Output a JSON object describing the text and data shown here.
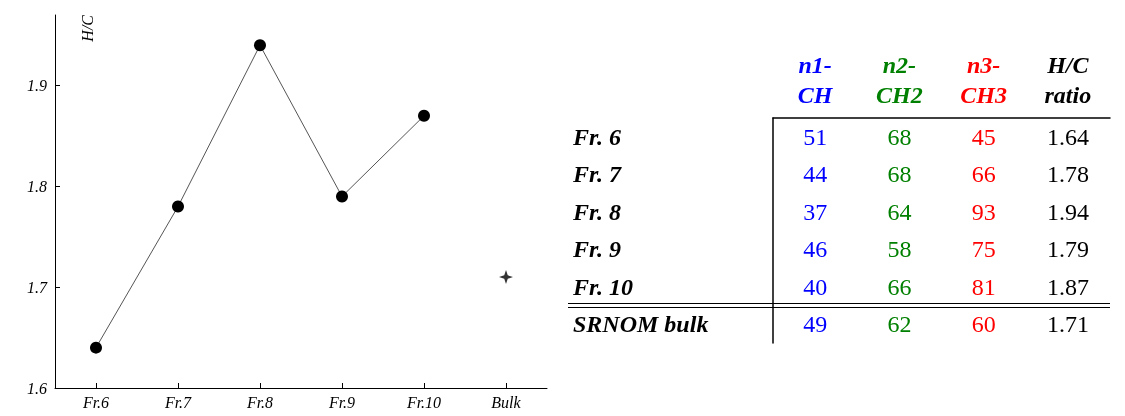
{
  "chart_data": [
    {
      "type": "line",
      "ylabel": "H/C",
      "categories": [
        "Fr.6",
        "Fr.7",
        "Fr.8",
        "Fr.9",
        "Fr.10",
        "Bulk"
      ],
      "ylim": [
        1.6,
        1.97
      ],
      "yticks": [
        1.6,
        1.7,
        1.8,
        1.9
      ],
      "series": [
        {
          "color": "#000000",
          "marker": "circle",
          "values": [
            1.64,
            1.78,
            1.94,
            1.79,
            1.87,
            null
          ]
        },
        {
          "type": "scatter",
          "color": "#000000",
          "marker": "star",
          "x": [
            "Bulk"
          ],
          "values": [
            1.71
          ]
        }
      ]
    },
    {
      "type": "heatmap",
      "data_labels": true,
      "categories": [
        "n1-CH",
        "n2-CH2",
        "n3-CH3",
        "H/C ratio"
      ],
      "colors": [
        "#0000ff",
        "#008000",
        "#ff0000",
        "#000000"
      ],
      "y_categories": [
        "Fr. 6",
        "Fr. 7",
        "Fr. 8",
        "Fr. 9",
        "Fr. 10",
        "SRNOM bulk"
      ],
      "cells": [
        [
          51,
          68,
          45,
          1.64
        ],
        [
          44,
          68,
          66,
          1.78
        ],
        [
          37,
          64,
          93,
          1.94
        ],
        [
          46,
          58,
          75,
          1.79
        ],
        [
          40,
          66,
          81,
          1.87
        ],
        [
          49,
          62,
          60,
          1.71
        ]
      ]
    }
  ]
}
